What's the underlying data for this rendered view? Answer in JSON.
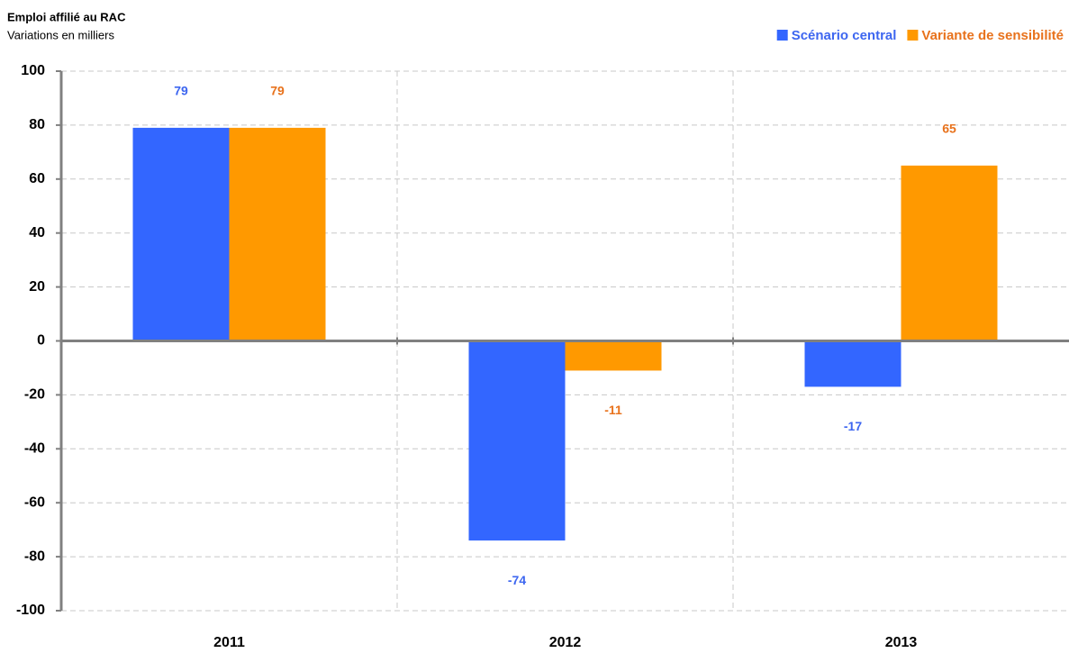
{
  "chart_data": {
    "type": "bar",
    "title": "Emploi affilié au RAC",
    "subtitle": "Variations en milliers",
    "categories": [
      "2011",
      "2012",
      "2013"
    ],
    "series": [
      {
        "name": "Scénario central",
        "color": "#3366ff",
        "label_color": "#3d66f0",
        "values": [
          79,
          -74,
          -17
        ]
      },
      {
        "name": "Variante de sensibilité",
        "color": "#ff9900",
        "label_color": "#e8721c",
        "values": [
          79,
          -11,
          65
        ]
      }
    ],
    "ylim": [
      -100,
      100
    ],
    "yticks": [
      -100,
      -80,
      -60,
      -40,
      -20,
      0,
      20,
      40,
      60,
      80,
      100
    ],
    "grid": true,
    "legend": "top-right"
  }
}
